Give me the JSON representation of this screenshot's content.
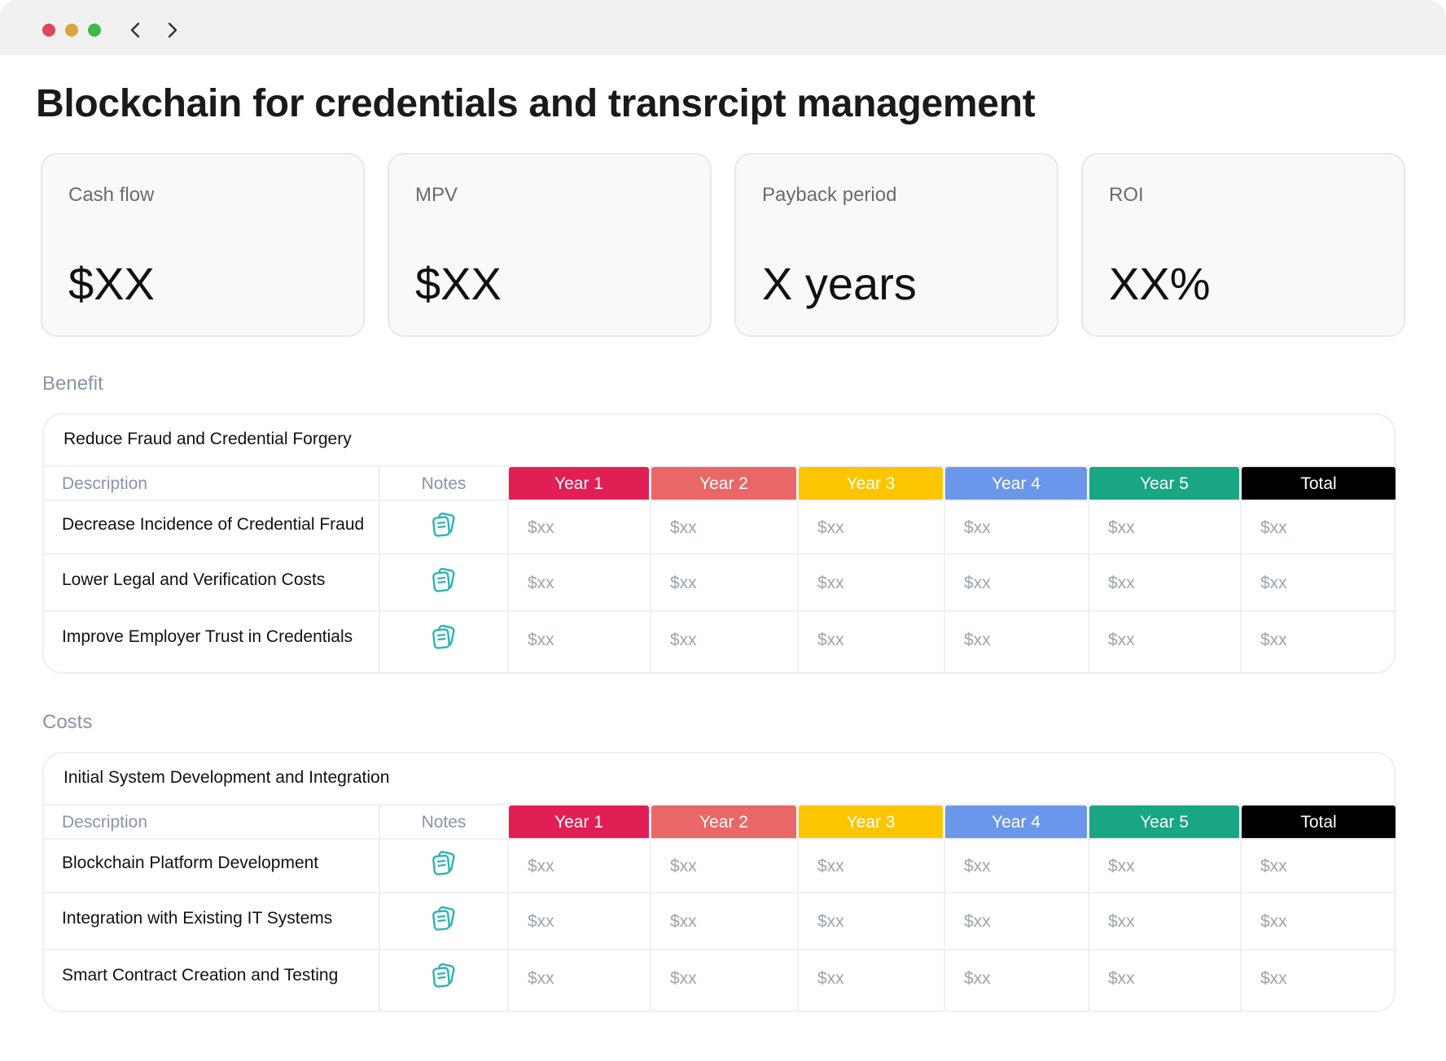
{
  "window": {
    "title": "Blockchain for credentials and transrcipt management"
  },
  "kpis": [
    {
      "label": "Cash flow",
      "value": "$XX"
    },
    {
      "label": "MPV",
      "value": "$XX"
    },
    {
      "label": "Payback period",
      "value": "X years"
    },
    {
      "label": "ROI",
      "value": "XX%"
    }
  ],
  "columns": {
    "description": "Description",
    "notes": "Notes",
    "years": [
      {
        "label": "Year 1",
        "color": "#e21f55"
      },
      {
        "label": "Year 2",
        "color": "#ea6767"
      },
      {
        "label": "Year 3",
        "color": "#fbc600"
      },
      {
        "label": "Year 4",
        "color": "#6b97ea"
      },
      {
        "label": "Year 5",
        "color": "#18a683"
      },
      {
        "label": "Total",
        "color": "#000000"
      }
    ]
  },
  "sections": [
    {
      "label": "Benefit",
      "table_title": "Reduce Fraud and Credential Forgery",
      "rows": [
        {
          "description": "Decrease Incidence of Credential Fraud",
          "values": [
            "$xx",
            "$xx",
            "$xx",
            "$xx",
            "$xx",
            "$xx"
          ]
        },
        {
          "description": "Lower Legal and Verification Costs",
          "values": [
            "$xx",
            "$xx",
            "$xx",
            "$xx",
            "$xx",
            "$xx"
          ]
        },
        {
          "description": "Improve Employer Trust in Credentials",
          "values": [
            "$xx",
            "$xx",
            "$xx",
            "$xx",
            "$xx",
            "$xx"
          ]
        }
      ]
    },
    {
      "label": "Costs",
      "table_title": "Initial System Development and Integration",
      "rows": [
        {
          "description": "Blockchain Platform Development",
          "values": [
            "$xx",
            "$xx",
            "$xx",
            "$xx",
            "$xx",
            "$xx"
          ]
        },
        {
          "description": "Integration with Existing IT Systems",
          "values": [
            "$xx",
            "$xx",
            "$xx",
            "$xx",
            "$xx",
            "$xx"
          ]
        },
        {
          "description": "Smart Contract Creation and Testing",
          "values": [
            "$xx",
            "$xx",
            "$xx",
            "$xx",
            "$xx",
            "$xx"
          ]
        }
      ]
    }
  ],
  "icons": {
    "back": "chevron-left-icon",
    "forward": "chevron-right-icon",
    "notes": "notes-icon"
  }
}
